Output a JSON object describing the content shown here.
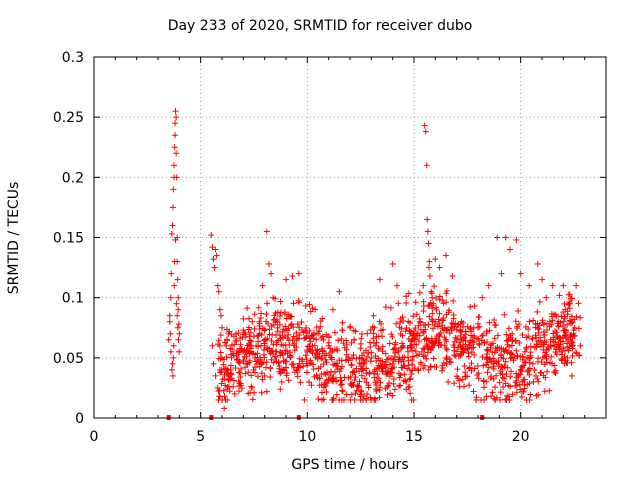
{
  "chart_data": {
    "type": "scatter",
    "title": "Day 233 of 2020, SRMTID for receiver dubo",
    "xlabel": "GPS time / hours",
    "ylabel": "SRMTID / TECUs",
    "xlim": [
      0,
      24
    ],
    "ylim": [
      0,
      0.3
    ],
    "xticks": [
      0,
      5,
      10,
      15,
      20
    ],
    "yticks": [
      0,
      0.05,
      0.1,
      0.15,
      0.2,
      0.25,
      0.3
    ],
    "ytick_labels": [
      "0",
      "0.05",
      "0.1",
      "0.15",
      "0.2",
      "0.25",
      "0.3"
    ],
    "grid": true,
    "marker": "+",
    "color": "#ff0000",
    "series": [
      {
        "name": "SRMTID",
        "x": [
          3.5,
          3.55,
          3.6,
          3.62,
          3.65,
          3.68,
          3.7,
          3.72,
          3.75,
          3.75,
          3.78,
          3.8,
          3.8,
          3.82,
          3.85,
          3.85,
          3.88,
          3.9,
          3.9,
          3.92,
          3.95,
          3.95,
          3.98,
          4.0,
          3.7,
          3.72,
          3.74,
          3.76,
          3.78,
          3.82,
          3.86,
          3.9,
          3.93,
          3.96,
          3.99,
          3.65,
          3.68,
          3.6,
          3.58,
          3.55,
          5.5,
          5.55,
          5.6,
          5.65,
          5.7,
          5.75,
          5.8,
          5.85,
          5.9,
          5.95,
          6.0,
          5.55,
          5.6,
          5.7,
          5.8,
          5.9,
          6.0,
          6.1,
          6.2,
          6.3,
          8.1,
          8.2,
          8.3,
          8.4,
          7.9,
          9.0,
          9.3,
          9.6,
          11.5,
          13.4,
          14.0,
          14.2,
          15.5,
          15.55,
          15.6,
          15.62,
          15.65,
          15.68,
          15.7,
          15.72,
          15.75,
          15.8,
          15.85,
          15.9,
          16.0,
          16.2,
          16.5,
          16.8,
          18.2,
          18.5,
          18.9,
          19.1,
          19.3,
          19.5,
          19.8,
          20.0,
          20.4,
          20.8,
          21.0,
          21.2,
          21.5,
          22.0,
          22.3,
          22.6,
          6.4,
          6.8,
          7.2,
          7.6,
          8.0,
          8.5,
          9.0,
          9.5,
          10.0,
          10.5,
          11.0,
          11.5,
          12.0,
          12.5,
          13.0,
          13.5,
          14.0,
          14.5,
          15.0,
          16.0,
          17.0,
          17.5,
          18.0,
          18.7,
          19.6,
          20.2,
          21.4,
          22.2,
          22.8,
          6.6,
          7.4,
          8.8,
          10.8,
          12.8,
          14.8,
          16.6,
          18.4,
          20.6,
          22.4,
          11.2,
          13.1
        ],
        "y": [
          0.065,
          0.085,
          0.1,
          0.12,
          0.153,
          0.16,
          0.175,
          0.19,
          0.21,
          0.2,
          0.225,
          0.235,
          0.245,
          0.255,
          0.25,
          0.22,
          0.2,
          0.15,
          0.13,
          0.115,
          0.1,
          0.09,
          0.078,
          0.07,
          0.035,
          0.05,
          0.06,
          0.11,
          0.13,
          0.148,
          0.095,
          0.085,
          0.075,
          0.065,
          0.055,
          0.04,
          0.045,
          0.055,
          0.07,
          0.08,
          0.152,
          0.142,
          0.132,
          0.125,
          0.14,
          0.135,
          0.11,
          0.105,
          0.09,
          0.085,
          0.075,
          0.06,
          0.045,
          0.035,
          0.025,
          0.04,
          0.05,
          0.008,
          0.06,
          0.07,
          0.155,
          0.128,
          0.12,
          0.1,
          0.11,
          0.115,
          0.118,
          0.12,
          0.105,
          0.115,
          0.128,
          0.11,
          0.243,
          0.238,
          0.21,
          0.165,
          0.155,
          0.145,
          0.125,
          0.13,
          0.118,
          0.105,
          0.1,
          0.095,
          0.132,
          0.125,
          0.135,
          0.118,
          0.1,
          0.11,
          0.15,
          0.12,
          0.15,
          0.14,
          0.148,
          0.12,
          0.11,
          0.128,
          0.115,
          0.1,
          0.11,
          0.11,
          0.095,
          0.11,
          0.04,
          0.055,
          0.045,
          0.06,
          0.035,
          0.05,
          0.042,
          0.065,
          0.055,
          0.07,
          0.06,
          0.048,
          0.075,
          0.058,
          0.05,
          0.068,
          0.045,
          0.06,
          0.07,
          0.08,
          0.065,
          0.058,
          0.075,
          0.062,
          0.07,
          0.055,
          0.065,
          0.05,
          0.06,
          0.02,
          0.025,
          0.03,
          0.028,
          0.02,
          0.032,
          0.03,
          0.018,
          0.03,
          0.035,
          0.09,
          0.085
        ]
      }
    ],
    "zero_markers_x": [
      3.5,
      5.5,
      9.6,
      18.2
    ]
  }
}
